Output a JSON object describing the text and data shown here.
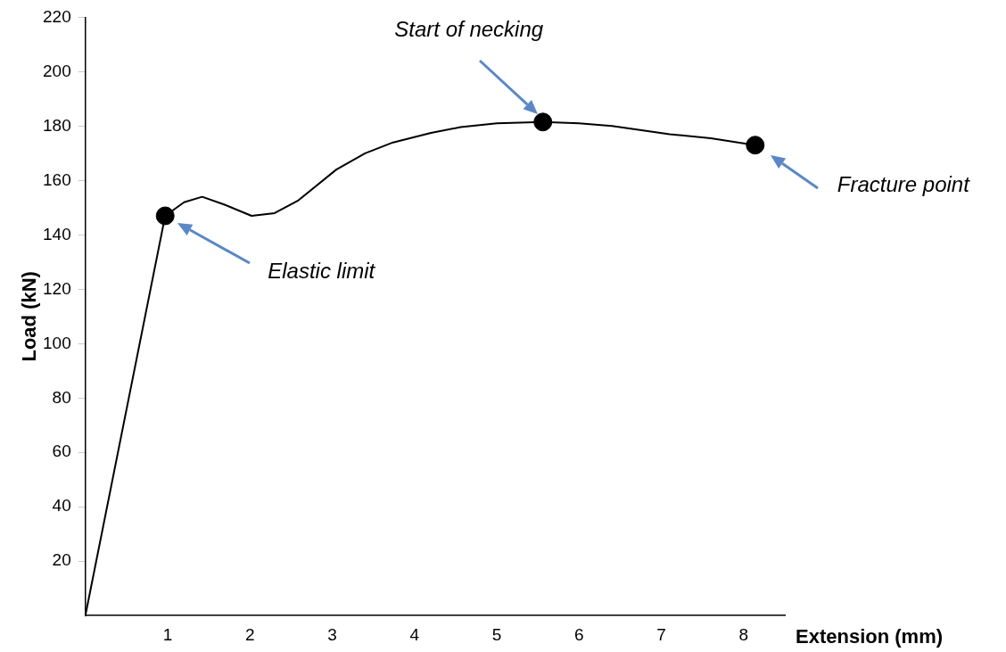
{
  "chart_data": {
    "type": "line",
    "xlabel": "Extension (mm)",
    "ylabel": "Load (kN)",
    "xlim": [
      0,
      8.5
    ],
    "xticks": [
      1,
      2,
      3,
      4,
      5,
      6,
      7,
      8
    ],
    "ylim": [
      0,
      220
    ],
    "yticks": [
      20,
      40,
      60,
      80,
      100,
      120,
      140,
      160,
      180,
      200,
      220
    ],
    "grid": false,
    "legend": false,
    "series": [
      {
        "color": "#000000",
        "marker": "none",
        "x": [
          0,
          0.97,
          1.2,
          1.42,
          1.7,
          2.02,
          2.3,
          2.58,
          3.05,
          3.4,
          3.74,
          4.2,
          4.56,
          5.0,
          5.56,
          6.0,
          6.4,
          7.1,
          7.6,
          8.14
        ],
        "values": [
          0,
          147,
          152,
          154,
          151,
          147,
          148,
          152.5,
          164,
          170,
          174,
          177.5,
          179.6,
          181,
          181.5,
          181,
          180,
          177,
          175.5,
          173
        ]
      },
      {
        "type": "scatter",
        "color": "#000000",
        "marker": "circle",
        "x": [
          0.97,
          5.56,
          8.14
        ],
        "values": [
          147,
          181.5,
          173
        ]
      }
    ],
    "annotations": [
      "Elastic limit",
      "Start of necking",
      "Fracture point"
    ]
  }
}
